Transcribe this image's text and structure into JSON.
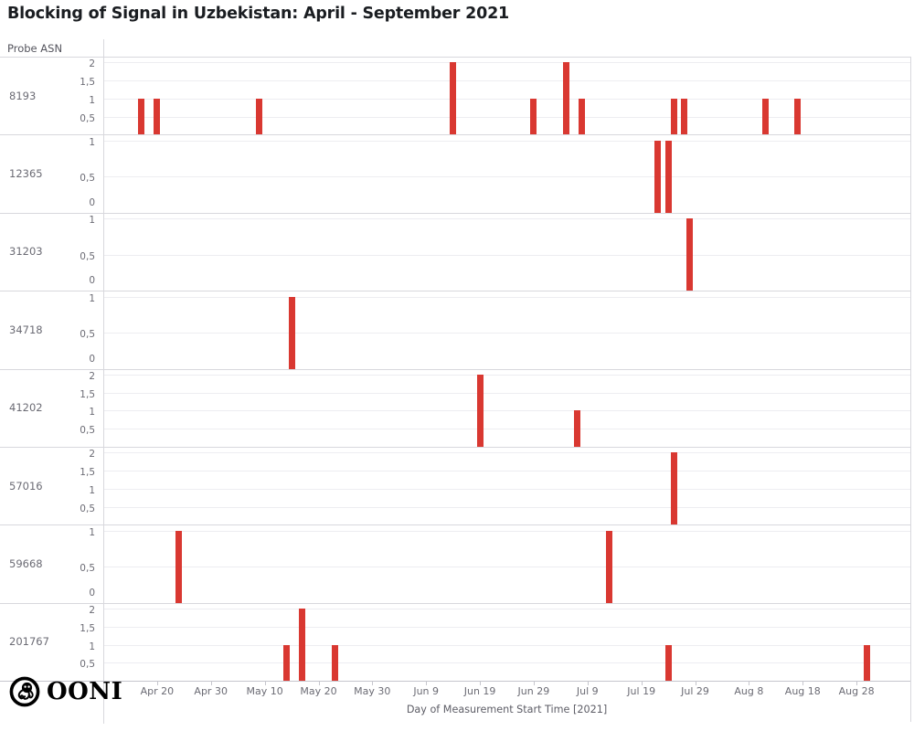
{
  "title": "Blocking of Signal in Uzbekistan: April - September 2021",
  "axis_header": "Probe ASN",
  "x_axis_title": "Day of Measurement Start Time [2021]",
  "logo_text": "OONI",
  "colors": {
    "bar": "#d93831",
    "grid": "#ededf1",
    "separator": "#d8d8dd",
    "axis_line": "#c6c6cd",
    "axis_text": "#6b6b74",
    "label_text": "#55555e",
    "title_text": "#1a1d21"
  },
  "chart_data": {
    "type": "bar",
    "title": "Blocking of Signal in Uzbekistan: April - September 2021",
    "xlabel": "Day of Measurement Start Time [2021]",
    "ylabel": "Probe ASN",
    "grid": true,
    "legend": "none",
    "x_domain_dates": [
      "2021-04-10",
      "2021-09-07"
    ],
    "x_domain_days": 150,
    "x_ticks": [
      {
        "label": "Apr 20",
        "day": 10
      },
      {
        "label": "Apr 30",
        "day": 20
      },
      {
        "label": "May 10",
        "day": 30
      },
      {
        "label": "May 20",
        "day": 40
      },
      {
        "label": "May 30",
        "day": 50
      },
      {
        "label": "Jun 9",
        "day": 60
      },
      {
        "label": "Jun 19",
        "day": 70
      },
      {
        "label": "Jun 29",
        "day": 80
      },
      {
        "label": "Jul 9",
        "day": 90
      },
      {
        "label": "Jul 19",
        "day": 100
      },
      {
        "label": "Jul 29",
        "day": 110
      },
      {
        "label": "Aug 8",
        "day": 120
      },
      {
        "label": "Aug 18",
        "day": 130
      },
      {
        "label": "Aug 28",
        "day": 140
      }
    ],
    "facets": [
      {
        "asn": "8193",
        "ymax": 2,
        "yticks": [
          {
            "label": "2",
            "value": 2
          },
          {
            "label": "1,5",
            "value": 1.5
          },
          {
            "label": "1",
            "value": 1
          },
          {
            "label": "0,5",
            "value": 0.5
          }
        ],
        "bars": [
          {
            "date": "Apr 17",
            "day": 7,
            "value": 1
          },
          {
            "date": "Apr 20",
            "day": 10,
            "value": 1
          },
          {
            "date": "May 9",
            "day": 29,
            "value": 1
          },
          {
            "date": "Jun 14",
            "day": 65,
            "value": 2
          },
          {
            "date": "Jun 29",
            "day": 80,
            "value": 1
          },
          {
            "date": "Jul 5",
            "day": 86,
            "value": 2
          },
          {
            "date": "Jul 8",
            "day": 89,
            "value": 1
          },
          {
            "date": "Jul 25",
            "day": 106,
            "value": 1
          },
          {
            "date": "Jul 27",
            "day": 108,
            "value": 1
          },
          {
            "date": "Aug 11",
            "day": 123,
            "value": 1
          },
          {
            "date": "Aug 17",
            "day": 129,
            "value": 1
          }
        ]
      },
      {
        "asn": "12365",
        "ymax": 1,
        "yticks": [
          {
            "label": "1",
            "value": 1
          },
          {
            "label": "0,5",
            "value": 0.5
          },
          {
            "label": "0",
            "value": 0
          }
        ],
        "bars": [
          {
            "date": "Jul 22",
            "day": 103,
            "value": 1
          },
          {
            "date": "Jul 24",
            "day": 105,
            "value": 1
          }
        ]
      },
      {
        "asn": "31203",
        "ymax": 1,
        "yticks": [
          {
            "label": "1",
            "value": 1
          },
          {
            "label": "0,5",
            "value": 0.5
          },
          {
            "label": "0",
            "value": 0
          }
        ],
        "bars": [
          {
            "date": "Jul 28",
            "day": 109,
            "value": 1
          }
        ]
      },
      {
        "asn": "34718",
        "ymax": 1,
        "yticks": [
          {
            "label": "1",
            "value": 1
          },
          {
            "label": "0,5",
            "value": 0.5
          },
          {
            "label": "0",
            "value": 0
          }
        ],
        "bars": [
          {
            "date": "May 15",
            "day": 35,
            "value": 1
          }
        ]
      },
      {
        "asn": "41202",
        "ymax": 2,
        "yticks": [
          {
            "label": "2",
            "value": 2
          },
          {
            "label": "1,5",
            "value": 1.5
          },
          {
            "label": "1",
            "value": 1
          },
          {
            "label": "0,5",
            "value": 0.5
          }
        ],
        "bars": [
          {
            "date": "Jun 19",
            "day": 70,
            "value": 2
          },
          {
            "date": "Jul 7",
            "day": 88,
            "value": 1
          }
        ]
      },
      {
        "asn": "57016",
        "ymax": 2,
        "yticks": [
          {
            "label": "2",
            "value": 2
          },
          {
            "label": "1,5",
            "value": 1.5
          },
          {
            "label": "1",
            "value": 1
          },
          {
            "label": "0,5",
            "value": 0.5
          }
        ],
        "bars": [
          {
            "date": "Jul 25",
            "day": 106,
            "value": 2
          }
        ]
      },
      {
        "asn": "59668",
        "ymax": 1,
        "yticks": [
          {
            "label": "1",
            "value": 1
          },
          {
            "label": "0,5",
            "value": 0.5
          },
          {
            "label": "0",
            "value": 0
          }
        ],
        "bars": [
          {
            "date": "Apr 24",
            "day": 14,
            "value": 1
          },
          {
            "date": "Jul 13",
            "day": 94,
            "value": 1
          }
        ]
      },
      {
        "asn": "201767",
        "ymax": 2,
        "yticks": [
          {
            "label": "2",
            "value": 2
          },
          {
            "label": "1,5",
            "value": 1.5
          },
          {
            "label": "1",
            "value": 1
          },
          {
            "label": "0,5",
            "value": 0.5
          }
        ],
        "bars": [
          {
            "date": "May 14",
            "day": 34,
            "value": 1
          },
          {
            "date": "May 17",
            "day": 37,
            "value": 2
          },
          {
            "date": "May 23",
            "day": 43,
            "value": 1
          },
          {
            "date": "Jul 24",
            "day": 105,
            "value": 1
          },
          {
            "date": "Aug 30",
            "day": 142,
            "value": 1
          }
        ]
      }
    ]
  }
}
